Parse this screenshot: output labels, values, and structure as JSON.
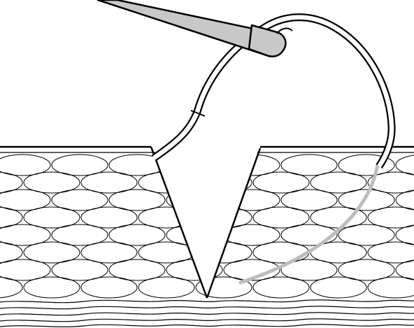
{
  "illustration": {
    "subject": "suture-needle-through-tissue-incision",
    "colors": {
      "outline": "#000000",
      "background": "#ffffff",
      "skin_fill": "#ffffff",
      "instrument_fill": "#c8c8c8",
      "hidden_needle": "#bdbdbd"
    }
  }
}
